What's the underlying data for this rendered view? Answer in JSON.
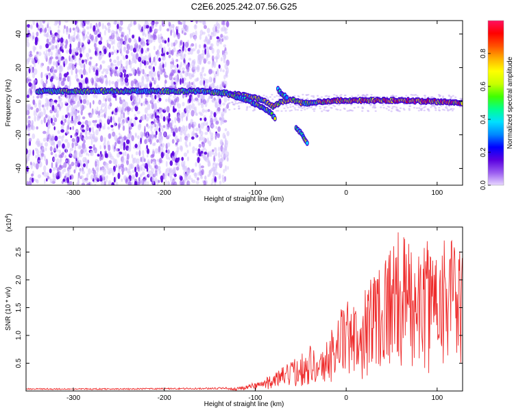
{
  "figure": {
    "title": "C2E6.2025.242.07.56.G25"
  },
  "chart_data": [
    {
      "type": "heatmap",
      "name": "spectrogram",
      "xlabel": "Height of straight line (km)",
      "ylabel": "Frequency (Hz)",
      "xlim": [
        -352,
        128
      ],
      "ylim": [
        -50,
        48
      ],
      "xticks": [
        -300,
        -200,
        -100,
        0,
        100
      ],
      "yticks": [
        -40,
        -20,
        0,
        20,
        40
      ],
      "colorbar": {
        "label": "Normalized spectral amplitude",
        "range": [
          0,
          1
        ],
        "ticks": [
          "0.0",
          "0.2",
          "0.4",
          "0.6",
          "0.8"
        ],
        "tick_values": [
          0,
          0.2,
          0.4,
          0.6,
          0.8
        ],
        "colormap": [
          "#e8d8ff",
          "#9a5cf0",
          "#5a00e0",
          "#0000ff",
          "#0088ff",
          "#00e0ff",
          "#00ff90",
          "#40ff00",
          "#c8ff00",
          "#ffff00",
          "#ffb000",
          "#ff5000",
          "#ff0000",
          "#ff1060"
        ]
      },
      "ridges": [
        {
          "name": "main-trace",
          "points": [
            [
              -340,
              6
            ],
            [
              -300,
              6
            ],
            [
              -250,
              6
            ],
            [
              -200,
              6
            ],
            [
              -160,
              6
            ],
            [
              -135,
              5
            ],
            [
              -120,
              4
            ],
            [
              -100,
              2
            ],
            [
              -90,
              0
            ],
            [
              -80,
              -3
            ],
            [
              -70,
              0
            ],
            [
              -60,
              1
            ],
            [
              -50,
              -1
            ],
            [
              -40,
              -1
            ],
            [
              -20,
              0
            ],
            [
              0,
              0.5
            ],
            [
              30,
              0.5
            ],
            [
              60,
              0.5
            ],
            [
              90,
              0
            ],
            [
              128,
              -1
            ]
          ]
        },
        {
          "name": "lower-branch",
          "points": [
            [
              -130,
              4
            ],
            [
              -110,
              1
            ],
            [
              -95,
              -3
            ],
            [
              -85,
              -6
            ],
            [
              -78,
              -10
            ]
          ]
        },
        {
          "name": "upper-branch",
          "points": [
            [
              -75,
              7
            ],
            [
              -70,
              4
            ],
            [
              -65,
              2
            ]
          ]
        },
        {
          "name": "detached-branch",
          "points": [
            [
              -55,
              -16
            ],
            [
              -48,
              -20
            ],
            [
              -42,
              -26
            ]
          ]
        }
      ],
      "noise_region": {
        "x_range": [
          -352,
          -130
        ],
        "y_range": [
          -50,
          48
        ]
      }
    },
    {
      "type": "line",
      "name": "snr",
      "xlabel": "Height of straight line (km)",
      "ylabel": "SNR (10 * v/v)",
      "y_scale_label": "(x10",
      "y_scale_exponent": "4",
      "xlim": [
        -352,
        128
      ],
      "ylim": [
        0,
        2.95
      ],
      "xticks": [
        -300,
        -200,
        -100,
        0,
        100
      ],
      "yticks": [
        0.5,
        1.0,
        1.5,
        2.0,
        2.5
      ],
      "ytick_labels": [
        "0.5",
        "1.0",
        "1.5",
        "2.0",
        "2.5"
      ],
      "series": [
        {
          "name": "SNR",
          "color": "#ee2a2a",
          "envelope": {
            "x": [
              -352,
              -250,
              -150,
              -120,
              -110,
              -100,
              -90,
              -80,
              -70,
              -60,
              -50,
              -40,
              -30,
              -20,
              -10,
              0,
              10,
              20,
              30,
              40,
              50,
              60,
              70,
              80,
              90,
              100,
              110,
              120,
              128
            ],
            "y": [
              0.04,
              0.04,
              0.05,
              0.06,
              0.1,
              0.15,
              0.2,
              0.3,
              0.4,
              0.5,
              0.65,
              0.8,
              0.6,
              0.9,
              1.3,
              1.55,
              1.4,
              1.75,
              2.1,
              2.3,
              2.6,
              2.7,
              2.5,
              2.3,
              2.55,
              2.6,
              2.8,
              2.45,
              2.3
            ]
          }
        }
      ]
    }
  ]
}
